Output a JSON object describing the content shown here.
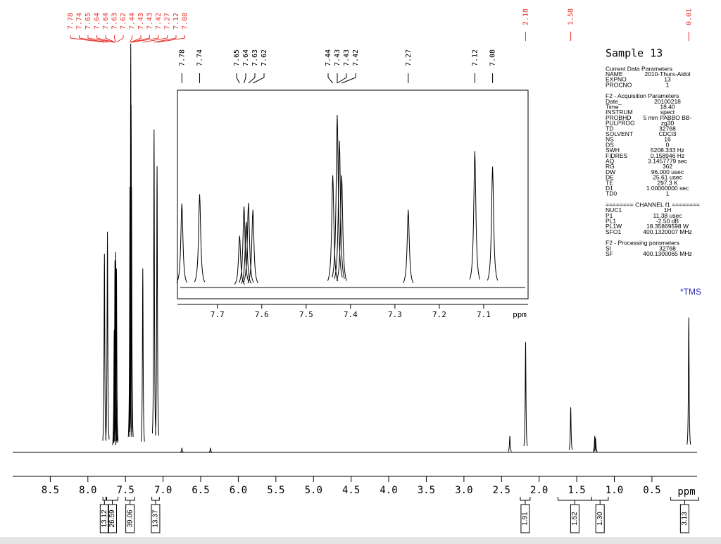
{
  "chart_data": {
    "type": "nmr",
    "title": "Sample 13",
    "x_label": "ppm",
    "xlim": [
      9.0,
      -0.1
    ],
    "xticks": [
      8.5,
      {
        "value": 8.0,
        "label": "8.0"
      },
      7.5,
      {
        "value": 7.0,
        "label": "7.0"
      },
      6.5,
      {
        "value": 6.0,
        "label": "6.0"
      },
      5.5,
      {
        "value": 5.0,
        "label": "5.0"
      },
      4.5,
      {
        "value": 4.0,
        "label": "4.0"
      },
      3.5,
      {
        "value": 3.0,
        "label": "3.0"
      },
      2.5,
      {
        "value": 2.0,
        "label": "2.0"
      },
      1.5,
      {
        "value": 1.0,
        "label": "1.0"
      },
      0.5
    ],
    "peaks": {
      "ppm": [
        7.78,
        7.74,
        7.65,
        7.64,
        7.635,
        7.63,
        7.62,
        7.44,
        7.43,
        7.425,
        7.42,
        7.27,
        7.12,
        7.08,
        6.75,
        6.37,
        2.39,
        2.18,
        1.58,
        1.26,
        1.25,
        0.01
      ],
      "height": [
        48.6,
        54,
        30,
        47,
        38,
        49,
        45,
        65,
        100,
        85,
        65,
        45,
        79,
        70,
        1,
        1,
        4,
        27,
        11,
        4,
        3.5,
        33
      ],
      "color": "#000000"
    },
    "peak_labels": [
      7.78,
      7.74,
      7.65,
      7.64,
      7.64,
      7.63,
      7.62,
      7.44,
      7.43,
      7.43,
      7.42,
      7.27,
      7.12,
      7.08
    ],
    "peak_labels_right": [
      2.18,
      1.58,
      0.01
    ],
    "peak_label_color": "#e8322d",
    "annotation": "*TMS",
    "annotation_color": "#2b2bb0",
    "integrals": [
      {
        "from": 7.8,
        "to": 7.76,
        "value": 13.12
      },
      {
        "from": 7.75,
        "to": 7.6,
        "value": 26.59
      },
      {
        "from": 7.5,
        "to": 7.38,
        "value": 39.06
      },
      {
        "from": 7.15,
        "to": 7.05,
        "value": 13.37
      },
      {
        "from": 2.25,
        "to": 2.12,
        "value": 1.91
      },
      {
        "from": 1.75,
        "to": 1.3,
        "value": 1.52
      },
      {
        "from": 1.3,
        "to": 1.08,
        "value": {
          "value": 1.3,
          "label": "1.30"
        }
      },
      {
        "from": 0.25,
        "to": -0.12,
        "value": 3.13
      }
    ],
    "inset": {
      "xlim": [
        7.79,
        7.0
      ],
      "xticks": [
        7.7,
        7.6,
        7.5,
        7.4,
        7.3,
        7.2,
        7.1
      ],
      "x_label": "ppm",
      "peak_labels": [
        7.78,
        7.74,
        7.65,
        7.64,
        7.63,
        7.62,
        7.44,
        7.43,
        7.43,
        7.42,
        7.27,
        7.12,
        7.08
      ]
    }
  },
  "parameters": [
    {
      "title": "Current Data Parameters",
      "rows": [
        [
          "NAME",
          "2010-Thurs-Aldol"
        ],
        [
          "EXPNO",
          "13"
        ],
        [
          "PROCNO",
          "1"
        ]
      ]
    },
    {
      "title": "F2 - Acquisition Parameters",
      "rows": [
        [
          "Date_",
          "20100218"
        ],
        [
          "Time",
          "18.40"
        ],
        [
          "INSTRUM",
          "spect"
        ],
        [
          "PROBHD",
          "5 mm PABBO BB-"
        ],
        [
          "PULPROG",
          "zg30"
        ],
        [
          "TD",
          "32768"
        ],
        [
          "SOLVENT",
          "CDCl3"
        ],
        [
          "NS",
          "16"
        ],
        [
          "DS",
          "0"
        ],
        [
          "SWH",
          "5208.333 Hz"
        ],
        [
          "FIDRES",
          "0.158946 Hz"
        ],
        [
          "AQ",
          "3.1457779 sec"
        ],
        [
          "RG",
          "362"
        ],
        [
          "DW",
          "96.000 usec"
        ],
        [
          "DE",
          "25.61 usec"
        ],
        [
          "TE",
          "297.3 K"
        ],
        [
          "D1",
          "1.00000000 sec"
        ],
        [
          "TD0",
          "1"
        ]
      ]
    },
    {
      "title": "======== CHANNEL f1 ========",
      "rows": [
        [
          "NUC1",
          "1H"
        ],
        [
          "P1",
          "11.38 usec"
        ],
        [
          "PL1",
          "-2.50 dB"
        ],
        [
          "PL1W",
          "18.35869598 W"
        ],
        [
          "SFO1",
          "400.1320007 MHz"
        ]
      ]
    },
    {
      "title": "F2 - Processing parameters",
      "rows": [
        [
          "SI",
          "32768"
        ],
        [
          "SF",
          "400.1300065 MHz"
        ]
      ]
    }
  ]
}
